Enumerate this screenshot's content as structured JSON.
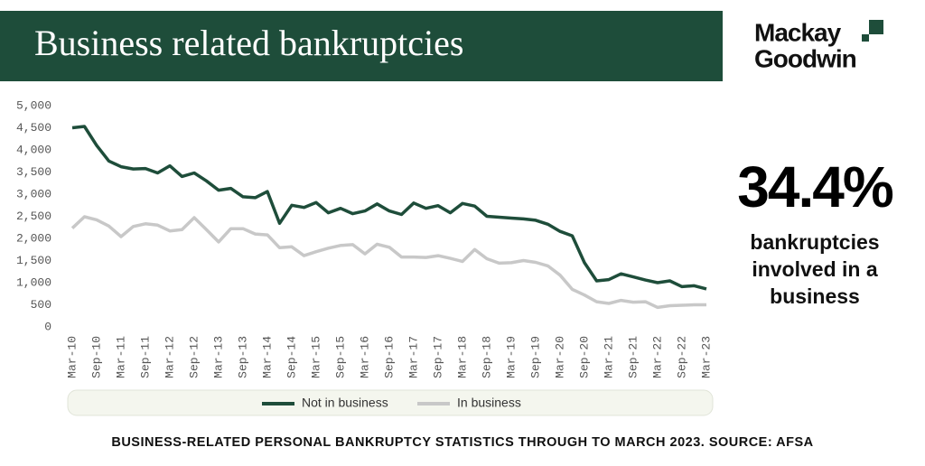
{
  "chart_data": {
    "type": "line",
    "title": "Business related bankruptcies",
    "categories": [
      "Mar-10",
      null,
      "Sep-10",
      null,
      "Mar-11",
      null,
      "Sep-11",
      null,
      "Mar-12",
      null,
      "Sep-12",
      null,
      "Mar-13",
      null,
      "Sep-13",
      null,
      "Mar-14",
      null,
      "Sep-14",
      null,
      "Mar-15",
      null,
      "Sep-15",
      null,
      "Mar-16",
      null,
      "Sep-16",
      null,
      "Mar-17",
      null,
      "Sep-17",
      null,
      "Mar-18",
      null,
      "Sep-18",
      null,
      "Mar-19",
      null,
      "Sep-19",
      null,
      "Mar-20",
      null,
      "Sep-20",
      null,
      "Mar-21",
      null,
      "Sep-21",
      null,
      "Mar-22",
      null,
      "Sep-22",
      null,
      "Mar-23"
    ],
    "series": [
      {
        "name": "Not in business",
        "color": "#1e4d3a",
        "values": [
          4500,
          4530,
          4100,
          3750,
          3620,
          3570,
          3580,
          3480,
          3640,
          3400,
          3480,
          3300,
          3090,
          3130,
          2940,
          2920,
          3060,
          2340,
          2750,
          2700,
          2810,
          2580,
          2680,
          2560,
          2620,
          2780,
          2620,
          2540,
          2800,
          2680,
          2740,
          2580,
          2790,
          2730,
          2500,
          2480,
          2460,
          2440,
          2410,
          2320,
          2160,
          2060,
          1450,
          1040,
          1070,
          1200,
          1130,
          1060,
          1000,
          1040,
          910,
          930,
          860
        ]
      },
      {
        "name": "In business",
        "color": "#c8c8c8",
        "values": [
          2230,
          2490,
          2420,
          2280,
          2040,
          2270,
          2330,
          2300,
          2170,
          2200,
          2470,
          2200,
          1920,
          2220,
          2220,
          2100,
          2080,
          1790,
          1810,
          1610,
          1700,
          1780,
          1840,
          1860,
          1650,
          1870,
          1800,
          1580,
          1580,
          1570,
          1610,
          1550,
          1480,
          1750,
          1540,
          1440,
          1450,
          1500,
          1460,
          1380,
          1170,
          850,
          720,
          570,
          530,
          600,
          560,
          570,
          440,
          480,
          490,
          500,
          500
        ]
      }
    ],
    "ylim": [
      0,
      5000
    ],
    "yticks": [
      0,
      500,
      {
        "value": 1000,
        "label": "1,000"
      },
      {
        "value": 1500,
        "label": "1,500"
      },
      {
        "value": 2000,
        "label": "2,000"
      },
      {
        "value": 2500,
        "label": "2,500"
      },
      {
        "value": 3000,
        "label": "3,000"
      },
      {
        "value": 3500,
        "label": "3,500"
      },
      {
        "value": 4000,
        "label": "4,000"
      },
      {
        "value": 4500,
        "label": "4,500"
      },
      {
        "value": 5000,
        "label": "5,000"
      }
    ],
    "grid": false
  },
  "logo": [
    "Mackay",
    "Goodwin"
  ],
  "stat": {
    "value": "34.4%",
    "lines": [
      "bankruptcies",
      "involved in a",
      "business"
    ]
  },
  "caption": "BUSINESS-RELATED PERSONAL BANKRUPTCY STATISTICS THROUGH TO MARCH 2023. SOURCE: AFSA"
}
